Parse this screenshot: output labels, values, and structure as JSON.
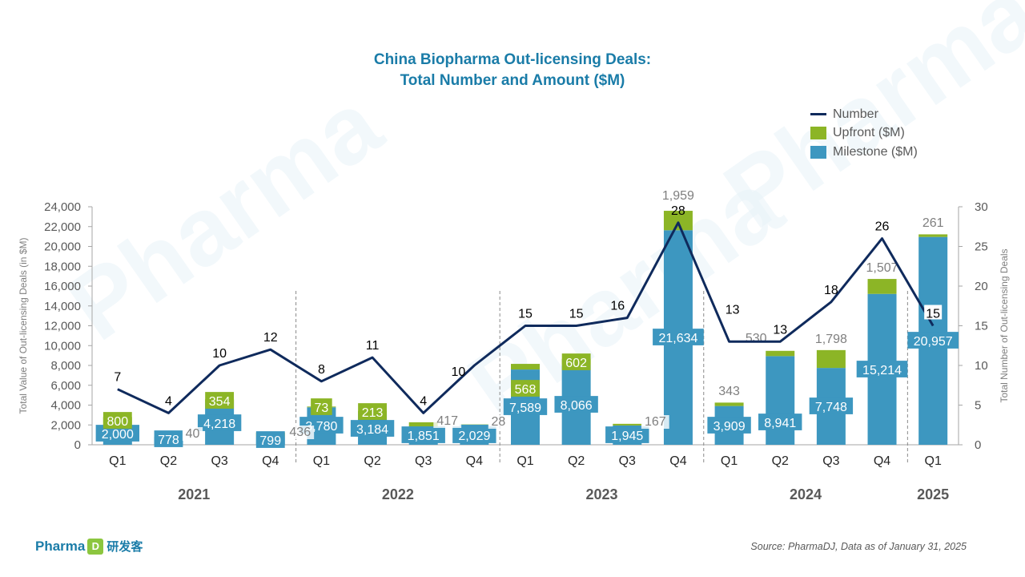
{
  "title": {
    "line1": "China Biopharma Out-licensing Deals:",
    "line2": "Total Number and Amount ($M)"
  },
  "legend": [
    {
      "label": "Number",
      "kind": "line",
      "color": "#0f2a5c"
    },
    {
      "label": "Upfront ($M)",
      "kind": "box",
      "color": "#8cb526"
    },
    {
      "label": "Milestone ($M)",
      "kind": "box",
      "color": "#3d97c0"
    }
  ],
  "watermark": "Pharma",
  "logo": {
    "text": "Pharma",
    "mark": "D",
    "cn": "研发客"
  },
  "source": "Source: PharmaDJ, Data as of January 31, 2025",
  "chart_data": {
    "type": "bar",
    "stacked": true,
    "categories": [
      "Q1",
      "Q2",
      "Q3",
      "Q4",
      "Q1",
      "Q2",
      "Q3",
      "Q4",
      "Q1",
      "Q2",
      "Q3",
      "Q4",
      "Q1",
      "Q2",
      "Q3",
      "Q4",
      "Q1"
    ],
    "years": [
      {
        "label": "2021",
        "start": 0,
        "end": 3
      },
      {
        "label": "2022",
        "start": 4,
        "end": 7
      },
      {
        "label": "2023",
        "start": 8,
        "end": 11
      },
      {
        "label": "2024",
        "start": 12,
        "end": 15
      },
      {
        "label": "2025",
        "start": 16,
        "end": 16
      }
    ],
    "series": [
      {
        "name": "Milestone ($M)",
        "color": "#3d97c0",
        "values": [
          2000,
          778,
          4218,
          799,
          3780,
          3184,
          1851,
          2029,
          7589,
          8066,
          1945,
          21634,
          3909,
          8941,
          7748,
          15214,
          20957
        ],
        "labels": [
          "2,000",
          "778",
          "4,218",
          "799",
          "3,780",
          "3,184",
          "1,851",
          "2,029",
          "7,589",
          "8,066",
          "1,945",
          "21,634",
          "3,909",
          "8,941",
          "7,748",
          "15,214",
          "20,957"
        ]
      },
      {
        "name": "Upfront ($M)",
        "color": "#8cb526",
        "values": [
          800,
          40,
          354,
          436,
          73,
          213,
          417,
          28,
          568,
          602,
          167,
          1959,
          343,
          530,
          1798,
          1507,
          261
        ],
        "labels": [
          "800",
          "40",
          "354",
          "436",
          "73",
          "213",
          "417",
          "28",
          "568",
          "602",
          "167",
          "1,959",
          "343",
          "530",
          "1,798",
          "1,507",
          "261"
        ]
      },
      {
        "name": "Number",
        "color": "#0f2a5c",
        "axis": "right",
        "values": [
          7,
          4,
          10,
          12,
          8,
          11,
          4,
          10,
          15,
          15,
          16,
          28,
          13,
          13,
          18,
          26,
          15
        ]
      }
    ],
    "ylabel": "Total Value of Out-licensing Deals (in $M)",
    "ylim": [
      0,
      24000
    ],
    "yticks": [
      "0",
      "2,000",
      "4,000",
      "6,000",
      "8,000",
      "10,000",
      "12,000",
      "14,000",
      "16,000",
      "18,000",
      "20,000",
      "22,000",
      "24,000"
    ],
    "y2label": "Total Number of Out-licensing Deals",
    "y2lim": [
      0,
      30
    ],
    "y2ticks": [
      "0",
      "5",
      "10",
      "15",
      "20",
      "25",
      "30"
    ],
    "legend_position": "top-right",
    "grid": false
  }
}
